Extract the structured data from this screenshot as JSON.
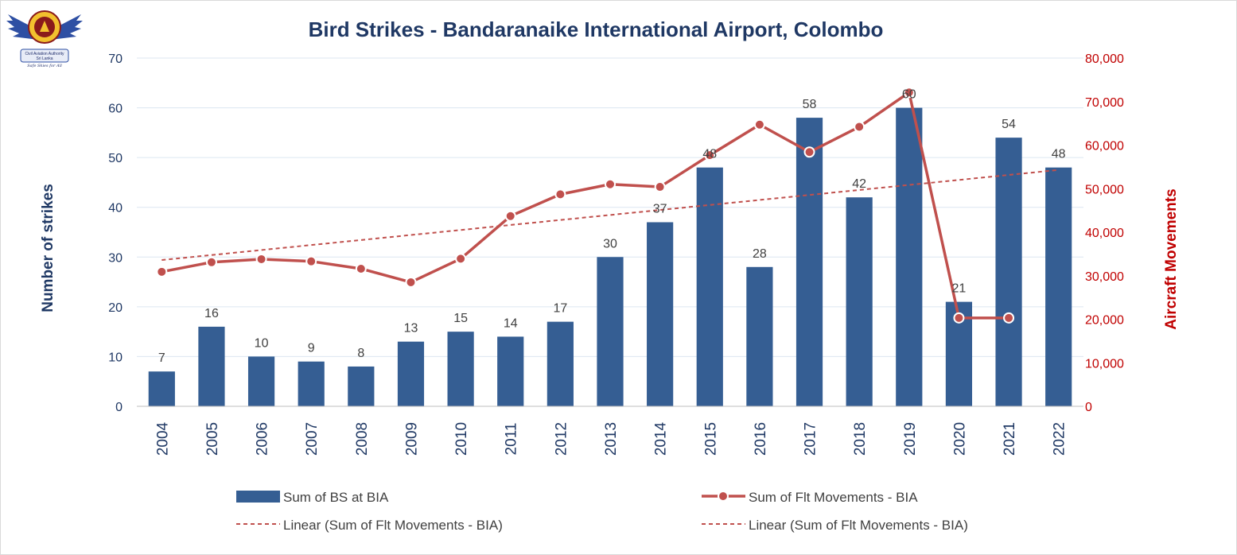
{
  "logo": {
    "name": "Civil Aviation Authority Sri Lanka",
    "line1": "Civil Aviation Authority",
    "line2": "Sri Lanka",
    "motto": "Safe Skies for All"
  },
  "colors": {
    "bars": "#355e93",
    "line": "#c0504d",
    "trend": "#c0504d",
    "left_axis": "#1f3864",
    "right_axis": "#c00000",
    "title": "#1f3864",
    "grid": "#dce6f1"
  },
  "chart_data": {
    "type": "bar",
    "title": "Bird Strikes - Bandaranaike International Airport, Colombo",
    "ylabel": "Number of strikes",
    "y2label": "Aircraft Movements",
    "ylim": [
      0,
      70
    ],
    "y2lim": [
      0,
      80000
    ],
    "yticks": [
      "0",
      "10",
      "20",
      "30",
      "40",
      "50",
      "60",
      "70"
    ],
    "y2ticks": [
      "0",
      "10,000",
      "20,000",
      "30,000",
      "40,000",
      "50,000",
      "60,000",
      "70,000",
      "80,000"
    ],
    "grid": true,
    "categories": [
      "2004",
      "2005",
      "2006",
      "2007",
      "2008",
      "2009",
      "2010",
      "2011",
      "2012",
      "2013",
      "2014",
      "2015",
      "2016",
      "2017",
      "2018",
      "2019",
      "2020",
      "2021",
      "2022"
    ],
    "series": [
      {
        "name": "Sum of BS at BIA",
        "type": "bar",
        "axis": "left",
        "values": [
          7,
          16,
          10,
          9,
          8,
          13,
          15,
          14,
          17,
          30,
          37,
          48,
          28,
          58,
          42,
          60,
          21,
          54,
          48
        ],
        "data_labels": [
          "7",
          "16",
          "10",
          "9",
          "8",
          "13",
          "15",
          "14",
          "17",
          "30",
          "37",
          "48",
          "28",
          "58",
          "42",
          "60",
          "21",
          "54",
          "48"
        ]
      },
      {
        "name": "Sum of Flt Movements - BIA",
        "type": "line",
        "axis": "right",
        "values": [
          30900,
          33100,
          33800,
          33300,
          31600,
          28500,
          33900,
          43700,
          48700,
          51000,
          50400,
          57700,
          64700,
          58400,
          64200,
          72100,
          20300,
          20300,
          null
        ]
      }
    ],
    "trendlines": [
      {
        "name": "Linear (Sum of Flt Movements - BIA)",
        "axis": "right",
        "start": 33600,
        "end": 54300
      }
    ],
    "legend": {
      "placement": "bottom",
      "entries": [
        "Sum of BS at BIA",
        "Sum of Flt Movements - BIA",
        "Linear (Sum of Flt Movements - BIA)",
        "Linear (Sum of Flt Movements - BIA)"
      ]
    }
  }
}
